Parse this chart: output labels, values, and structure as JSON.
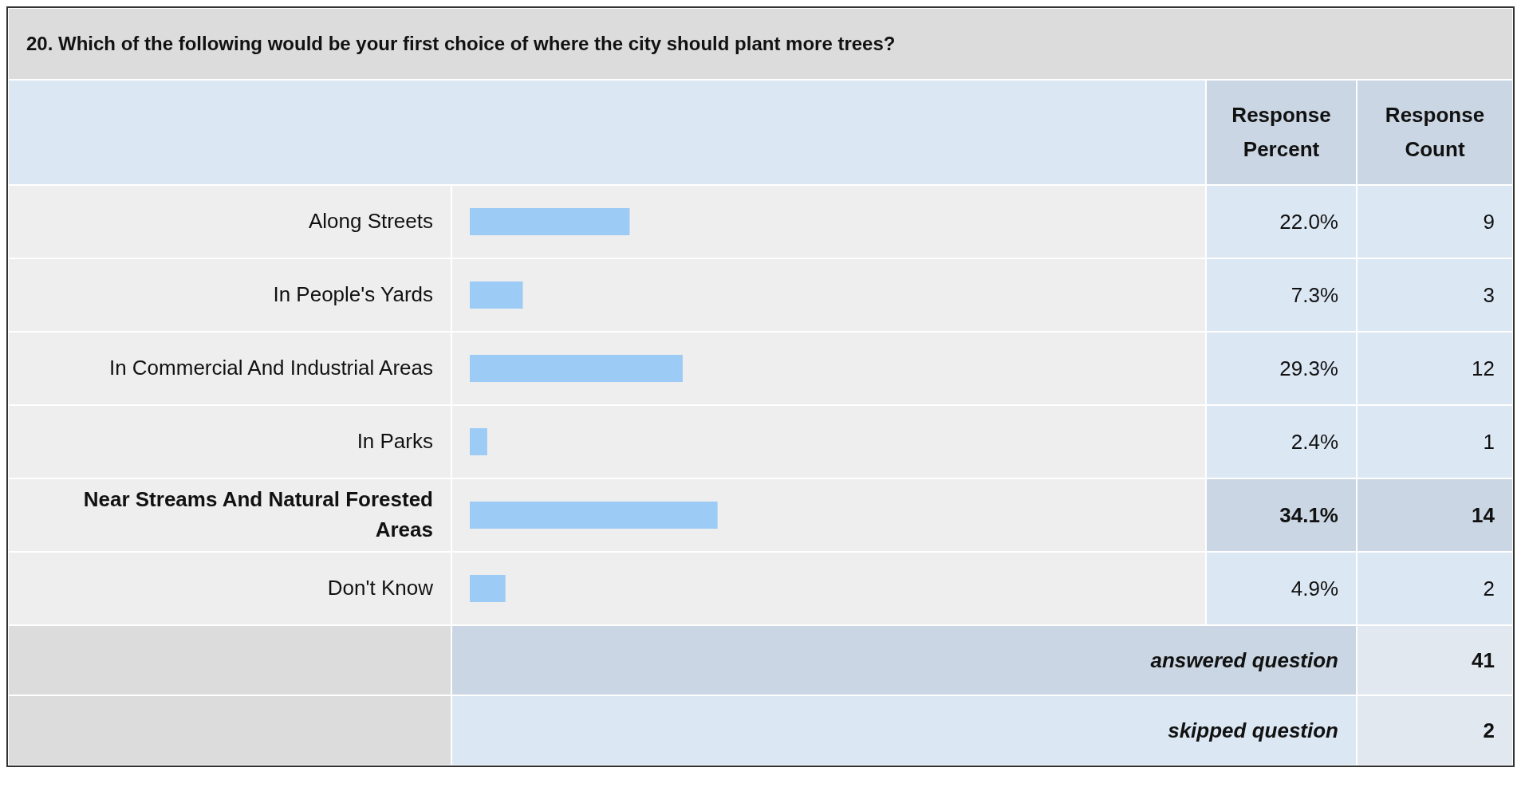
{
  "chart_data": {
    "type": "bar",
    "orientation": "horizontal",
    "title": "20. Which of the following would be your first choice of where the city should plant more trees?",
    "categories": [
      "Along Streets",
      "In People's Yards",
      "In Commercial And Industrial Areas",
      "In Parks",
      "Near Streams And Natural Forested Areas",
      "Don't Know"
    ],
    "values": [
      22.0,
      7.3,
      29.3,
      2.4,
      34.1,
      4.9
    ],
    "value_labels": [
      "22.0%",
      "7.3%",
      "29.3%",
      "2.4%",
      "34.1%",
      "4.9%"
    ],
    "color": "#9ccbf5",
    "legend": false,
    "annotations": [
      "Response Percent",
      "Response Count",
      "9",
      "3",
      "12",
      "1",
      "14",
      "2",
      "answered question",
      "41",
      "skipped question",
      "2"
    ]
  }
}
